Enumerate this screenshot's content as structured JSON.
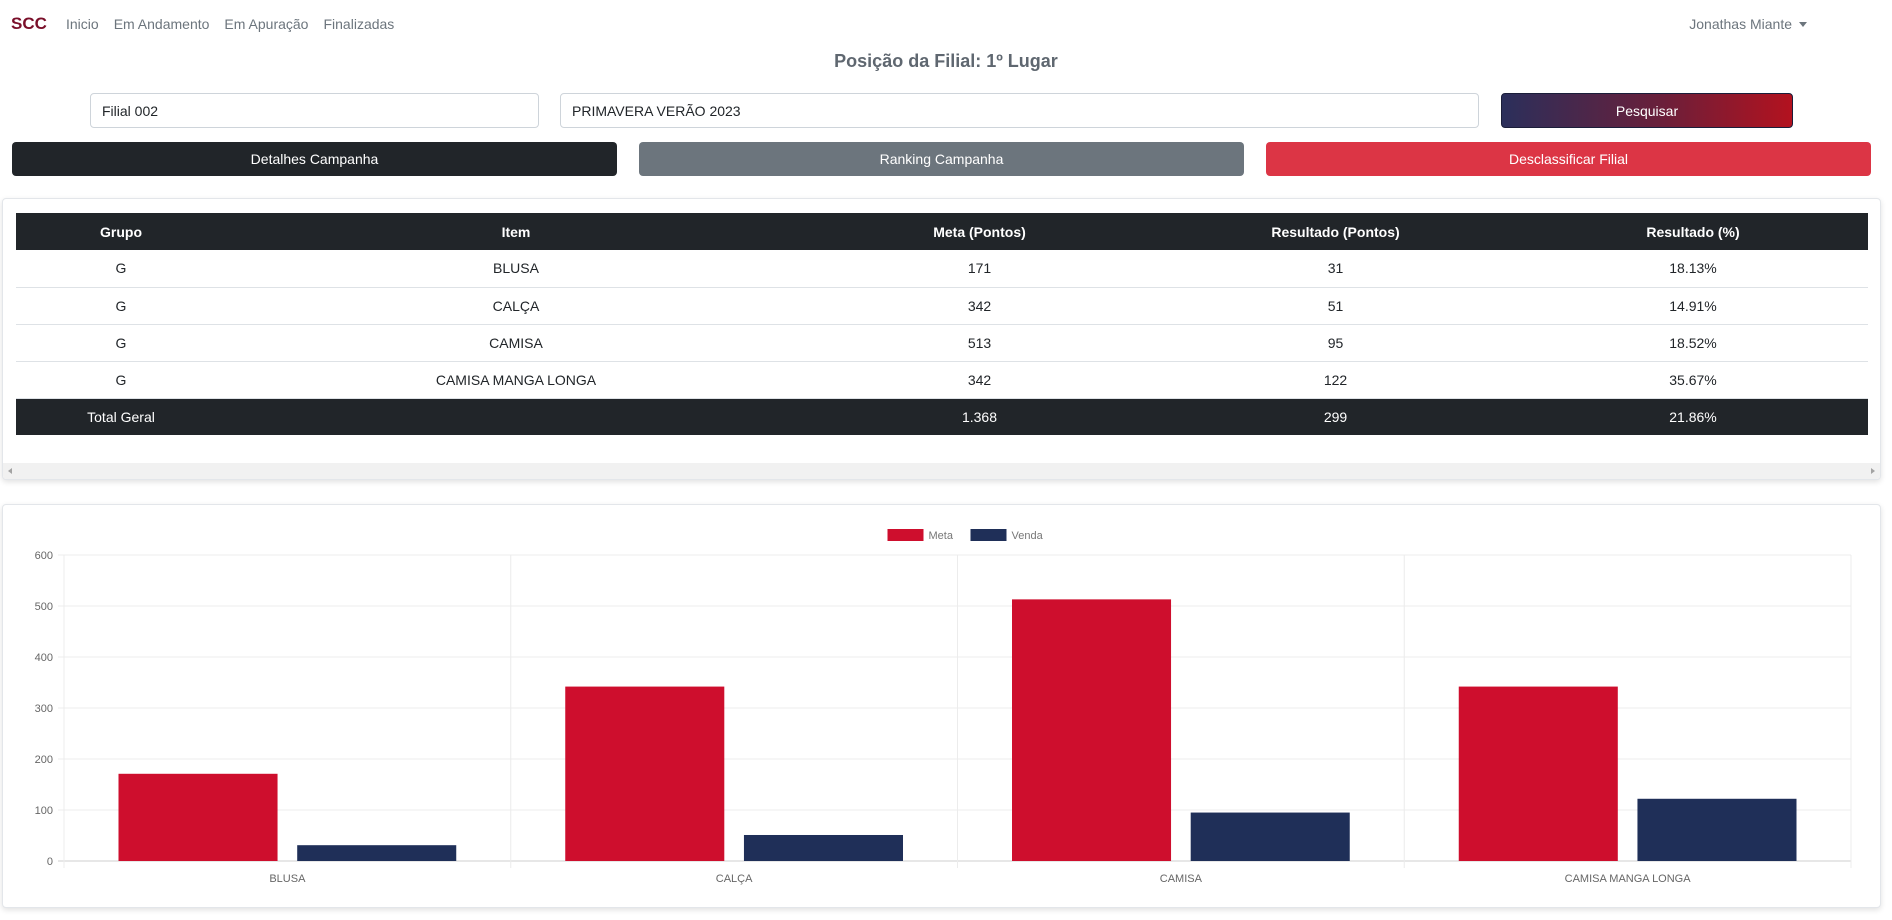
{
  "nav": {
    "brand": "SCC",
    "links": [
      "Inicio",
      "Em Andamento",
      "Em Apuração",
      "Finalizadas"
    ],
    "user": "Jonathas Miante"
  },
  "page": {
    "title": "Posição da Filial: 1º Lugar"
  },
  "search": {
    "filial_value": "Filial 002",
    "campanha_value": "PRIMAVERA VERÃO 2023",
    "button_label": "Pesquisar"
  },
  "actions": {
    "details": "Detalhes Campanha",
    "ranking": "Ranking Campanha",
    "disqualify": "Desclassificar Filial"
  },
  "table": {
    "headers": [
      "Grupo",
      "Item",
      "Meta (Pontos)",
      "Resultado (Pontos)",
      "Resultado (%)"
    ],
    "rows": [
      [
        "G",
        "BLUSA",
        "171",
        "31",
        "18.13%"
      ],
      [
        "G",
        "CALÇA",
        "342",
        "51",
        "14.91%"
      ],
      [
        "G",
        "CAMISA",
        "513",
        "95",
        "18.52%"
      ],
      [
        "G",
        "CAMISA MANGA LONGA",
        "342",
        "122",
        "35.67%"
      ]
    ],
    "total": [
      "Total Geral",
      "",
      "1.368",
      "299",
      "21.86%"
    ]
  },
  "chart_data": {
    "type": "bar",
    "categories": [
      "BLUSA",
      "CALÇA",
      "CAMISA",
      "CAMISA MANGA LONGA"
    ],
    "series": [
      {
        "name": "Meta",
        "values": [
          171,
          342,
          513,
          342
        ],
        "color": "#ce0e2d"
      },
      {
        "name": "Venda",
        "values": [
          31,
          51,
          95,
          122
        ],
        "color": "#1f2f58"
      }
    ],
    "ylim": [
      0,
      600
    ],
    "yticks": [
      0,
      100,
      200,
      300,
      400,
      500,
      600
    ],
    "legend": "top-center",
    "grid": true
  }
}
